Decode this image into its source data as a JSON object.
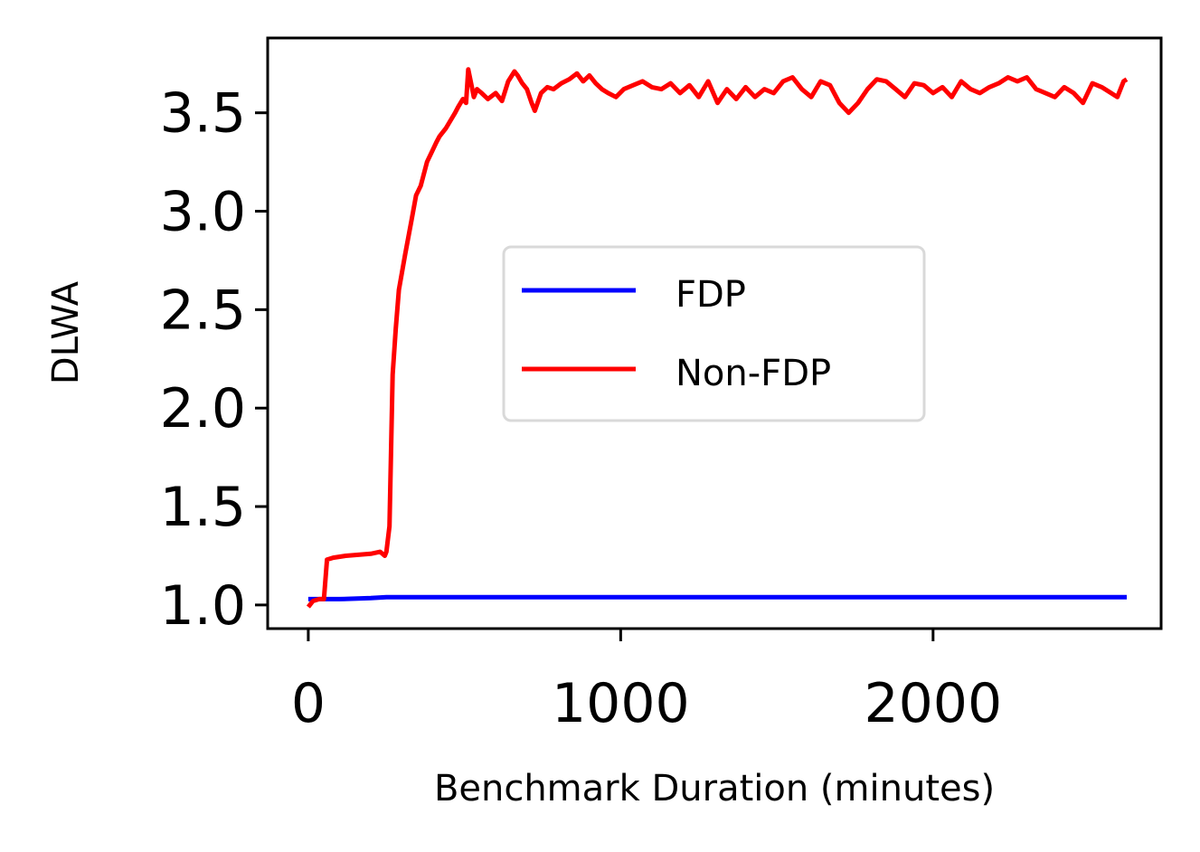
{
  "chart_data": {
    "type": "line",
    "title": "",
    "xlabel": "Benchmark Duration (minutes)",
    "ylabel": "DLWA",
    "xlim": [
      -130,
      2730
    ],
    "ylim": [
      0.88,
      3.88
    ],
    "x_ticks": [
      0,
      1000,
      2000
    ],
    "x_tick_labels": [
      "0",
      "1000",
      "2000"
    ],
    "y_ticks": [
      1.0,
      1.5,
      2.0,
      2.5,
      3.0,
      3.5
    ],
    "y_tick_labels": [
      "1.0",
      "1.5",
      "2.0",
      "2.5",
      "3.0",
      "3.5"
    ],
    "grid": false,
    "legend_position": "center-right",
    "series": [
      {
        "name": "FDP",
        "color": "#0000ff",
        "x": [
          0,
          100,
          200,
          250,
          300,
          400,
          500,
          800,
          1200,
          1600,
          2000,
          2400,
          2620
        ],
        "y": [
          1.03,
          1.03,
          1.035,
          1.04,
          1.04,
          1.04,
          1.04,
          1.04,
          1.04,
          1.04,
          1.04,
          1.04,
          1.04
        ]
      },
      {
        "name": "Non-FDP",
        "color": "#ff0000",
        "x": [
          0,
          15,
          35,
          50,
          60,
          80,
          120,
          200,
          230,
          245,
          250,
          260,
          270,
          280,
          290,
          310,
          330,
          345,
          360,
          380,
          395,
          410,
          420,
          440,
          455,
          470,
          480,
          495,
          505,
          512,
          520,
          530,
          540,
          555,
          575,
          600,
          620,
          640,
          660,
          670,
          685,
          700,
          715,
          725,
          745,
          765,
          785,
          810,
          835,
          860,
          880,
          900,
          920,
          940,
          960,
          985,
          1010,
          1040,
          1070,
          1100,
          1130,
          1160,
          1190,
          1220,
          1250,
          1280,
          1310,
          1340,
          1370,
          1400,
          1430,
          1460,
          1490,
          1520,
          1550,
          1580,
          1610,
          1640,
          1670,
          1700,
          1730,
          1760,
          1790,
          1820,
          1850,
          1880,
          1910,
          1940,
          1970,
          2000,
          2030,
          2060,
          2090,
          2120,
          2150,
          2180,
          2210,
          2240,
          2270,
          2300,
          2330,
          2360,
          2390,
          2420,
          2450,
          2480,
          2510,
          2540,
          2570,
          2590,
          2610,
          2620
        ],
        "y": [
          0.99,
          1.02,
          1.03,
          1.03,
          1.23,
          1.24,
          1.25,
          1.26,
          1.27,
          1.25,
          1.27,
          1.4,
          2.17,
          2.4,
          2.6,
          2.78,
          2.95,
          3.08,
          3.13,
          3.25,
          3.3,
          3.35,
          3.38,
          3.42,
          3.46,
          3.5,
          3.53,
          3.57,
          3.55,
          3.72,
          3.66,
          3.58,
          3.62,
          3.6,
          3.57,
          3.6,
          3.56,
          3.66,
          3.71,
          3.69,
          3.65,
          3.62,
          3.55,
          3.51,
          3.6,
          3.63,
          3.62,
          3.65,
          3.67,
          3.7,
          3.66,
          3.69,
          3.65,
          3.62,
          3.6,
          3.58,
          3.62,
          3.64,
          3.66,
          3.63,
          3.62,
          3.65,
          3.6,
          3.64,
          3.58,
          3.66,
          3.55,
          3.62,
          3.57,
          3.63,
          3.58,
          3.62,
          3.6,
          3.66,
          3.68,
          3.62,
          3.58,
          3.66,
          3.64,
          3.55,
          3.5,
          3.55,
          3.62,
          3.67,
          3.66,
          3.62,
          3.58,
          3.65,
          3.64,
          3.6,
          3.63,
          3.58,
          3.66,
          3.62,
          3.6,
          3.63,
          3.65,
          3.68,
          3.66,
          3.68,
          3.62,
          3.6,
          3.58,
          3.63,
          3.6,
          3.55,
          3.65,
          3.63,
          3.6,
          3.58,
          3.66,
          3.67
        ]
      }
    ]
  }
}
